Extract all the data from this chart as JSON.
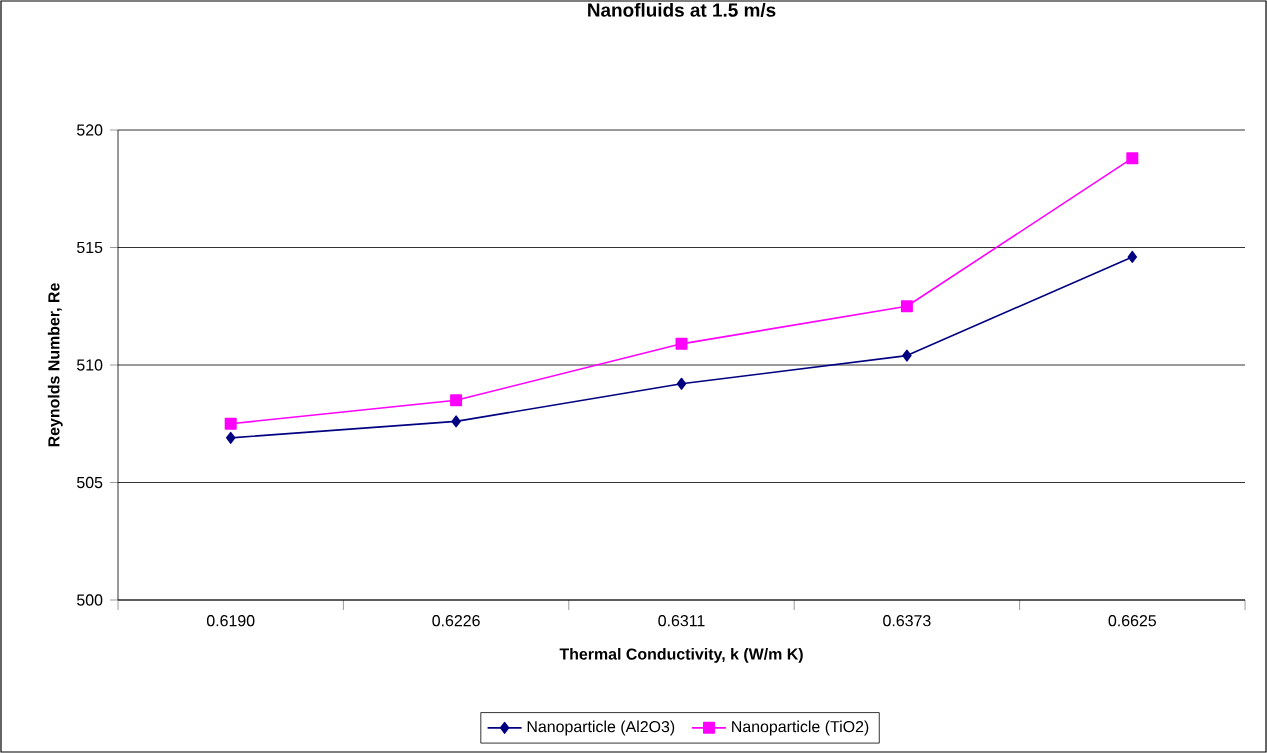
{
  "chart_data": {
    "type": "line",
    "title": "Nanofluids at 1.5 m/s",
    "xlabel": "Thermal Conductivity, k (W/m K)",
    "ylabel": "Reynolds Number, Re",
    "categories": [
      "0.6190",
      "0.6226",
      "0.6311",
      "0.6373",
      "0.6625"
    ],
    "series": [
      {
        "name": "Nanoparticle (Al2O3)",
        "color": "#000080",
        "marker": "diamond",
        "values": [
          506.9,
          507.6,
          509.2,
          510.4,
          514.6
        ]
      },
      {
        "name": "Nanoparticle (TiO2)",
        "color": "#ff00ff",
        "marker": "square",
        "values": [
          507.5,
          508.5,
          510.9,
          512.5,
          518.8
        ]
      }
    ],
    "ylim": [
      500,
      520
    ],
    "yticks": [
      500,
      505,
      510,
      515,
      520
    ],
    "grid": "y",
    "legend": "bottom",
    "line_style": "solid"
  }
}
